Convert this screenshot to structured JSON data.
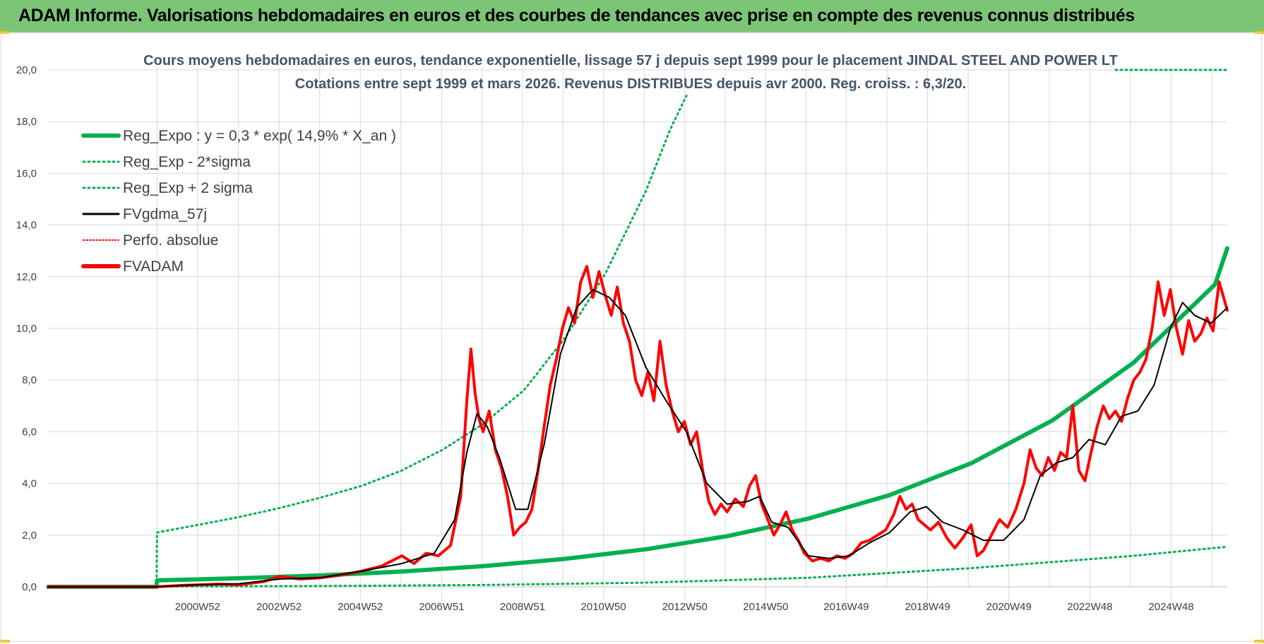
{
  "header": {
    "title": "ADAM Informe. Valorisations hebdomadaires en euros et des courbes de tendances avec prise en compte des revenus connus distribués"
  },
  "colors": {
    "banner": "#7cc576",
    "green": "#00b050",
    "red": "#ff0000",
    "black": "#000000",
    "grid": "#d9d9d9"
  },
  "chart_data": {
    "type": "line",
    "title_lines": [
      "Cours moyens hebdomadaires en euros, tendance exponentielle, lissage 57 j depuis sept 1999 pour le placement JINDAL STEEL AND POWER LT",
      "Cotations entre sept 1999 et mars 2026. Revenus DISTRIBUES depuis avr 2000. Reg. croiss. : 6,3/20."
    ],
    "ylim": [
      0,
      20
    ],
    "xlim": [
      1997.3,
      2026.3
    ],
    "y_ticks": [
      0,
      2,
      4,
      6,
      8,
      10,
      12,
      14,
      16,
      18,
      20
    ],
    "y_tick_labels": [
      "0,0",
      "2,0",
      "4,0",
      "6,0",
      "8,0",
      "10,0",
      "12,0",
      "14,0",
      "16,0",
      "18,0",
      "20,0"
    ],
    "x_ticks": [
      2000.98,
      2002.98,
      2004.98,
      2006.98,
      2008.97,
      2010.96,
      2012.96,
      2014.95,
      2016.93,
      2018.93,
      2020.93,
      2022.92,
      2024.92
    ],
    "x_tick_labels": [
      "2000W52",
      "2002W52",
      "2004W52",
      "2006W51",
      "2008W51",
      "2010W50",
      "2012W50",
      "2014W50",
      "2016W49",
      "2018W49",
      "2020W49",
      "2022W48",
      "2024W48"
    ],
    "legend": [
      {
        "label": "Reg_Expo : y = 0,3 * exp( 14,9% *  X_an )",
        "style": "solid-thick",
        "color": "#00b050"
      },
      {
        "label": "Reg_Exp - 2*sigma",
        "style": "dotted",
        "color": "#00b050"
      },
      {
        "label": "Reg_Exp + 2 sigma",
        "style": "dotted",
        "color": "#00b050"
      },
      {
        "label": "FVgdma_57j",
        "style": "solid",
        "color": "#000000"
      },
      {
        "label": "Perfo. absolue",
        "style": "dotted",
        "color": "#ff0000"
      },
      {
        "label": "FVADAM",
        "style": "solid-thick",
        "color": "#ff0000"
      }
    ],
    "series": [
      {
        "name": "Reg_Expo",
        "points": [
          [
            1997.3,
            0
          ],
          [
            1999.97,
            0
          ],
          [
            1999.98,
            0.25
          ],
          [
            2002,
            0.33
          ],
          [
            2004,
            0.44
          ],
          [
            2006,
            0.59
          ],
          [
            2008,
            0.8
          ],
          [
            2010,
            1.08
          ],
          [
            2012,
            1.45
          ],
          [
            2014,
            1.96
          ],
          [
            2016,
            2.64
          ],
          [
            2018,
            3.55
          ],
          [
            2020,
            4.78
          ],
          [
            2022,
            6.44
          ],
          [
            2024,
            8.68
          ],
          [
            2026,
            11.7
          ],
          [
            2026.3,
            13.1
          ]
        ]
      },
      {
        "name": "Reg_Exp - 2*sigma",
        "points": [
          [
            1997.3,
            0
          ],
          [
            1999.97,
            0
          ],
          [
            1999.98,
            0.01
          ],
          [
            2004,
            0.03
          ],
          [
            2008,
            0.07
          ],
          [
            2012,
            0.16
          ],
          [
            2016,
            0.35
          ],
          [
            2020,
            0.72
          ],
          [
            2024,
            1.2
          ],
          [
            2026.3,
            1.55
          ]
        ]
      },
      {
        "name": "Reg_Exp + 2 sigma",
        "points": [
          [
            1997.3,
            0
          ],
          [
            1999.97,
            0
          ],
          [
            1999.98,
            2.1
          ],
          [
            2001,
            2.4
          ],
          [
            2002,
            2.7
          ],
          [
            2003,
            3.05
          ],
          [
            2004,
            3.45
          ],
          [
            2005,
            3.9
          ],
          [
            2006,
            4.5
          ],
          [
            2007,
            5.3
          ],
          [
            2008,
            6.3
          ],
          [
            2009,
            7.6
          ],
          [
            2010,
            9.6
          ],
          [
            2011,
            12.1
          ],
          [
            2012,
            15.3
          ],
          [
            2012.6,
            17.7
          ],
          [
            2013,
            19.0
          ]
        ]
      },
      {
        "name": "FVgdma_57j",
        "points": [
          [
            1997.3,
            0
          ],
          [
            1999.97,
            0
          ],
          [
            2001,
            0.08
          ],
          [
            2002,
            0.12
          ],
          [
            2003,
            0.3
          ],
          [
            2004,
            0.35
          ],
          [
            2005,
            0.6
          ],
          [
            2006,
            0.9
          ],
          [
            2006.8,
            1.3
          ],
          [
            2007.3,
            2.6
          ],
          [
            2007.6,
            5.2
          ],
          [
            2007.85,
            6.7
          ],
          [
            2008.1,
            6.2
          ],
          [
            2008.4,
            5.0
          ],
          [
            2008.8,
            3.0
          ],
          [
            2009.1,
            3.0
          ],
          [
            2009.5,
            5.5
          ],
          [
            2009.9,
            9.0
          ],
          [
            2010.3,
            10.8
          ],
          [
            2010.7,
            11.5
          ],
          [
            2011.1,
            11.2
          ],
          [
            2011.5,
            10.5
          ],
          [
            2012,
            8.5
          ],
          [
            2012.5,
            7.2
          ],
          [
            2013,
            6.0
          ],
          [
            2013.5,
            4.0
          ],
          [
            2014,
            3.2
          ],
          [
            2014.5,
            3.3
          ],
          [
            2014.8,
            3.5
          ],
          [
            2015.1,
            2.5
          ],
          [
            2015.5,
            2.3
          ],
          [
            2016,
            1.2
          ],
          [
            2016.5,
            1.1
          ],
          [
            2017,
            1.2
          ],
          [
            2017.5,
            1.7
          ],
          [
            2018,
            2.1
          ],
          [
            2018.5,
            2.9
          ],
          [
            2018.9,
            3.1
          ],
          [
            2019.3,
            2.5
          ],
          [
            2019.8,
            2.2
          ],
          [
            2020.3,
            1.8
          ],
          [
            2020.8,
            1.8
          ],
          [
            2021.3,
            2.6
          ],
          [
            2021.7,
            4.3
          ],
          [
            2022.1,
            4.8
          ],
          [
            2022.5,
            5.0
          ],
          [
            2022.9,
            5.7
          ],
          [
            2023.3,
            5.5
          ],
          [
            2023.7,
            6.6
          ],
          [
            2024.1,
            6.8
          ],
          [
            2024.5,
            7.8
          ],
          [
            2024.9,
            10.0
          ],
          [
            2025.2,
            11.0
          ],
          [
            2025.5,
            10.5
          ],
          [
            2025.9,
            10.2
          ],
          [
            2026.3,
            10.8
          ]
        ]
      },
      {
        "name": "FVADAM",
        "points": [
          [
            1997.3,
            0
          ],
          [
            1999.97,
            0
          ],
          [
            2000.5,
            0.05
          ],
          [
            2001.5,
            0.1
          ],
          [
            2002,
            0.08
          ],
          [
            2002.6,
            0.2
          ],
          [
            2003,
            0.4
          ],
          [
            2003.5,
            0.3
          ],
          [
            2004,
            0.35
          ],
          [
            2004.5,
            0.45
          ],
          [
            2005,
            0.6
          ],
          [
            2005.5,
            0.8
          ],
          [
            2006,
            1.2
          ],
          [
            2006.3,
            0.9
          ],
          [
            2006.6,
            1.3
          ],
          [
            2006.9,
            1.2
          ],
          [
            2007.2,
            1.6
          ],
          [
            2007.45,
            3.5
          ],
          [
            2007.6,
            7.2
          ],
          [
            2007.7,
            9.2
          ],
          [
            2007.8,
            7.5
          ],
          [
            2007.9,
            6.5
          ],
          [
            2008.0,
            6.0
          ],
          [
            2008.15,
            6.8
          ],
          [
            2008.3,
            5.3
          ],
          [
            2008.45,
            4.6
          ],
          [
            2008.6,
            3.5
          ],
          [
            2008.75,
            2.0
          ],
          [
            2008.9,
            2.3
          ],
          [
            2009.05,
            2.5
          ],
          [
            2009.2,
            3.0
          ],
          [
            2009.35,
            4.5
          ],
          [
            2009.5,
            6.2
          ],
          [
            2009.65,
            7.8
          ],
          [
            2009.8,
            8.8
          ],
          [
            2009.95,
            10.0
          ],
          [
            2010.1,
            10.8
          ],
          [
            2010.25,
            10.2
          ],
          [
            2010.4,
            11.8
          ],
          [
            2010.55,
            12.4
          ],
          [
            2010.7,
            11.2
          ],
          [
            2010.85,
            12.2
          ],
          [
            2011.0,
            11.3
          ],
          [
            2011.15,
            10.5
          ],
          [
            2011.3,
            11.6
          ],
          [
            2011.45,
            10.2
          ],
          [
            2011.6,
            9.5
          ],
          [
            2011.75,
            8.0
          ],
          [
            2011.9,
            7.4
          ],
          [
            2012.05,
            8.3
          ],
          [
            2012.2,
            7.2
          ],
          [
            2012.35,
            9.5
          ],
          [
            2012.5,
            7.8
          ],
          [
            2012.65,
            6.8
          ],
          [
            2012.8,
            6.0
          ],
          [
            2012.95,
            6.4
          ],
          [
            2013.1,
            5.5
          ],
          [
            2013.25,
            6.0
          ],
          [
            2013.4,
            4.5
          ],
          [
            2013.55,
            3.3
          ],
          [
            2013.7,
            2.8
          ],
          [
            2013.85,
            3.2
          ],
          [
            2014.0,
            2.9
          ],
          [
            2014.2,
            3.4
          ],
          [
            2014.4,
            3.1
          ],
          [
            2014.55,
            3.9
          ],
          [
            2014.7,
            4.3
          ],
          [
            2014.85,
            3.2
          ],
          [
            2015.0,
            2.6
          ],
          [
            2015.15,
            2.0
          ],
          [
            2015.3,
            2.4
          ],
          [
            2015.45,
            2.9
          ],
          [
            2015.6,
            2.2
          ],
          [
            2015.75,
            1.8
          ],
          [
            2015.9,
            1.3
          ],
          [
            2016.1,
            1.0
          ],
          [
            2016.3,
            1.1
          ],
          [
            2016.5,
            1.0
          ],
          [
            2016.7,
            1.2
          ],
          [
            2016.9,
            1.1
          ],
          [
            2017.1,
            1.3
          ],
          [
            2017.3,
            1.7
          ],
          [
            2017.5,
            1.8
          ],
          [
            2017.7,
            2.0
          ],
          [
            2017.9,
            2.2
          ],
          [
            2018.1,
            2.8
          ],
          [
            2018.25,
            3.5
          ],
          [
            2018.4,
            3.0
          ],
          [
            2018.55,
            3.2
          ],
          [
            2018.7,
            2.6
          ],
          [
            2018.85,
            2.4
          ],
          [
            2019.0,
            2.2
          ],
          [
            2019.2,
            2.5
          ],
          [
            2019.4,
            1.9
          ],
          [
            2019.6,
            1.5
          ],
          [
            2019.8,
            1.9
          ],
          [
            2020.0,
            2.4
          ],
          [
            2020.15,
            1.2
          ],
          [
            2020.3,
            1.4
          ],
          [
            2020.5,
            2.0
          ],
          [
            2020.7,
            2.6
          ],
          [
            2020.9,
            2.3
          ],
          [
            2021.1,
            3.0
          ],
          [
            2021.3,
            4.0
          ],
          [
            2021.45,
            5.3
          ],
          [
            2021.6,
            4.6
          ],
          [
            2021.75,
            4.3
          ],
          [
            2021.9,
            5.0
          ],
          [
            2022.05,
            4.5
          ],
          [
            2022.2,
            5.2
          ],
          [
            2022.35,
            5.0
          ],
          [
            2022.5,
            7.0
          ],
          [
            2022.65,
            4.5
          ],
          [
            2022.8,
            4.1
          ],
          [
            2022.95,
            5.2
          ],
          [
            2023.1,
            6.2
          ],
          [
            2023.25,
            7.0
          ],
          [
            2023.4,
            6.5
          ],
          [
            2023.55,
            6.8
          ],
          [
            2023.7,
            6.4
          ],
          [
            2023.85,
            7.3
          ],
          [
            2024.0,
            8.0
          ],
          [
            2024.15,
            8.3
          ],
          [
            2024.3,
            8.8
          ],
          [
            2024.45,
            10.0
          ],
          [
            2024.6,
            11.8
          ],
          [
            2024.75,
            10.5
          ],
          [
            2024.9,
            11.5
          ],
          [
            2025.05,
            10.0
          ],
          [
            2025.2,
            9.0
          ],
          [
            2025.35,
            10.3
          ],
          [
            2025.5,
            9.5
          ],
          [
            2025.65,
            9.8
          ],
          [
            2025.8,
            10.4
          ],
          [
            2025.95,
            9.9
          ],
          [
            2026.1,
            11.8
          ],
          [
            2026.3,
            10.7
          ]
        ]
      }
    ]
  }
}
